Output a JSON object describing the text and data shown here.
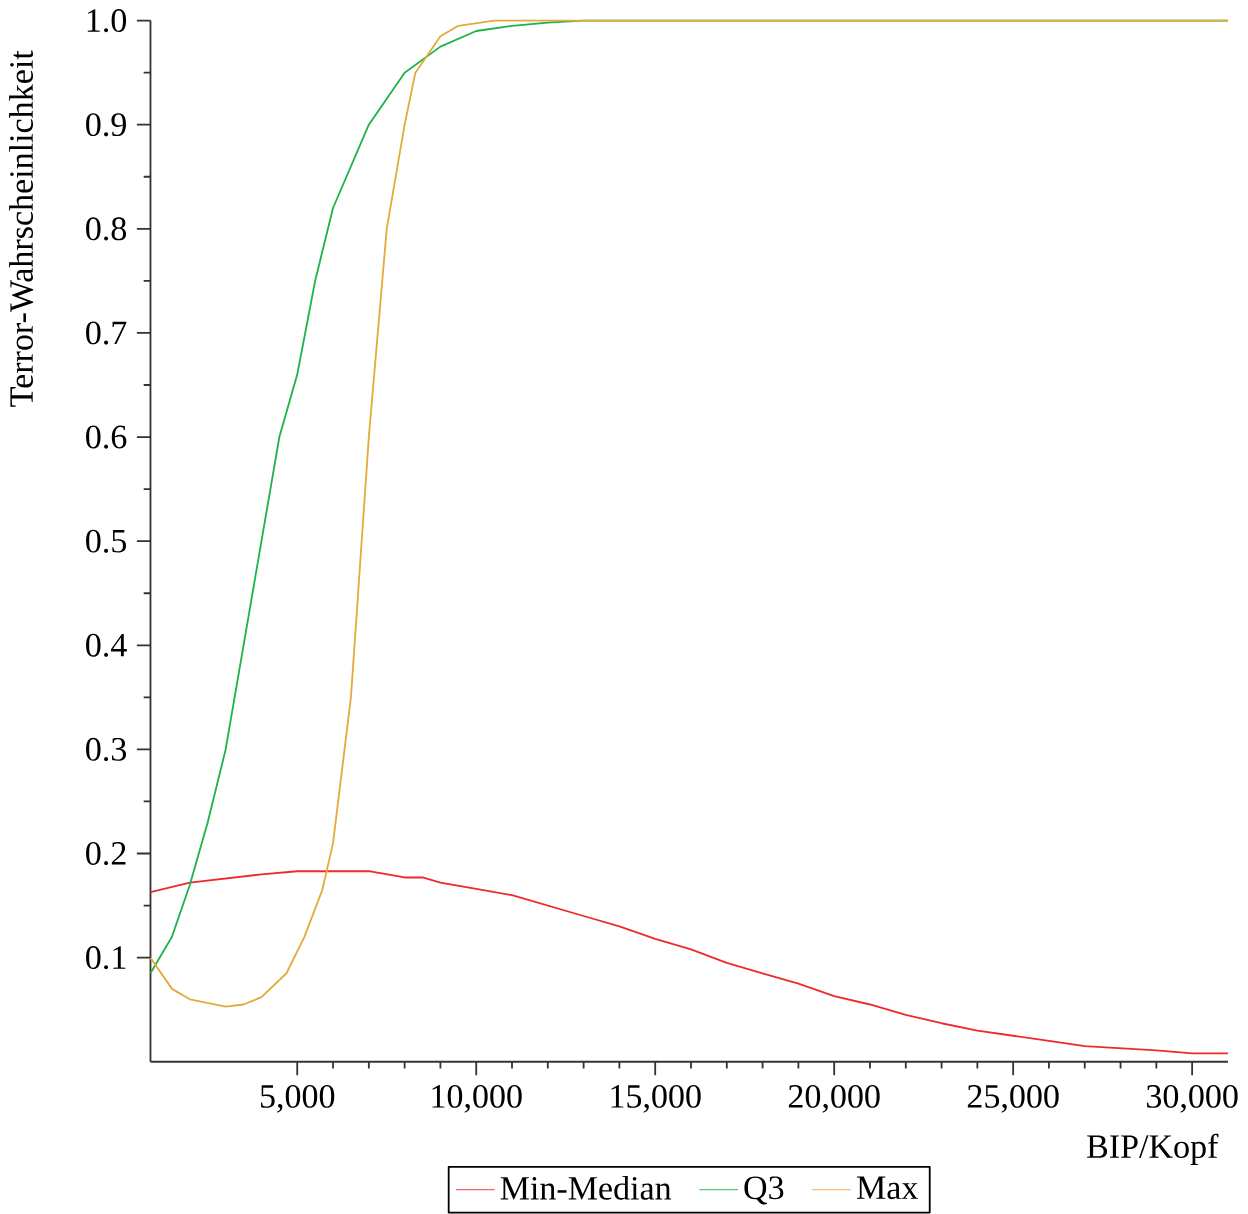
{
  "chart_data": {
    "type": "line",
    "xlabel": "BIP/Kopf",
    "ylabel": "Terror-Wahrscheinlichkeit",
    "xlim": [
      900,
      31000
    ],
    "ylim": [
      0,
      1
    ],
    "xticks": [
      {
        "value": 5000,
        "label": "5,000"
      },
      {
        "value": 10000,
        "label": "10,000"
      },
      {
        "value": 15000,
        "label": "15,000"
      },
      {
        "value": 20000,
        "label": "20,000"
      },
      {
        "value": 25000,
        "label": "25,000"
      },
      {
        "value": 30000,
        "label": "30,000"
      }
    ],
    "yticks": [
      0.1,
      0.2,
      0.3,
      0.4,
      0.5,
      0.6,
      0.7,
      0.8,
      0.9,
      {
        "value": 1,
        "label": "1.0"
      }
    ],
    "grid": false,
    "legend": "bottom",
    "marker": "none",
    "line_style": "solid",
    "series": [
      {
        "name": "Min-Median",
        "color": "#ee2a2a",
        "x": [
          900,
          2000,
          4000,
          5000,
          7000,
          8000,
          8500,
          9000,
          10000,
          11000,
          12000,
          13000,
          14000,
          15000,
          16000,
          17000,
          18000,
          19000,
          20000,
          21000,
          22000,
          23000,
          24000,
          25000,
          26000,
          27000,
          28000,
          29000,
          30000,
          31000
        ],
        "values": [
          0.163,
          0.172,
          0.18,
          0.183,
          0.183,
          0.177,
          0.177,
          0.172,
          0.166,
          0.16,
          0.15,
          0.14,
          0.13,
          0.118,
          0.108,
          0.095,
          0.085,
          0.075,
          0.063,
          0.055,
          0.045,
          0.037,
          0.03,
          0.025,
          0.02,
          0.015,
          0.013,
          0.011,
          0.008,
          0.008
        ]
      },
      {
        "name": "Q3",
        "color": "#1db34a",
        "x": [
          900,
          1500,
          2000,
          2500,
          3000,
          3500,
          4000,
          4500,
          5000,
          5500,
          6000,
          7000,
          8000,
          9000,
          10000,
          11000,
          12000,
          13000,
          31000
        ],
        "values": [
          0.085,
          0.12,
          0.17,
          0.23,
          0.3,
          0.4,
          0.5,
          0.6,
          0.66,
          0.75,
          0.82,
          0.9,
          0.95,
          0.975,
          0.99,
          0.995,
          0.998,
          1.0,
          1.0
        ]
      },
      {
        "name": "Max",
        "color": "#e3ab3c",
        "x": [
          900,
          1500,
          2000,
          3000,
          3500,
          4000,
          4700,
          5200,
          5700,
          6000,
          6500,
          7000,
          7200,
          7500,
          8000,
          8300,
          9000,
          9500,
          10500,
          31000
        ],
        "values": [
          0.1,
          0.07,
          0.06,
          0.053,
          0.055,
          0.062,
          0.085,
          0.12,
          0.165,
          0.21,
          0.35,
          0.6,
          0.68,
          0.8,
          0.9,
          0.95,
          0.985,
          0.995,
          1.0,
          1.0
        ]
      }
    ]
  }
}
